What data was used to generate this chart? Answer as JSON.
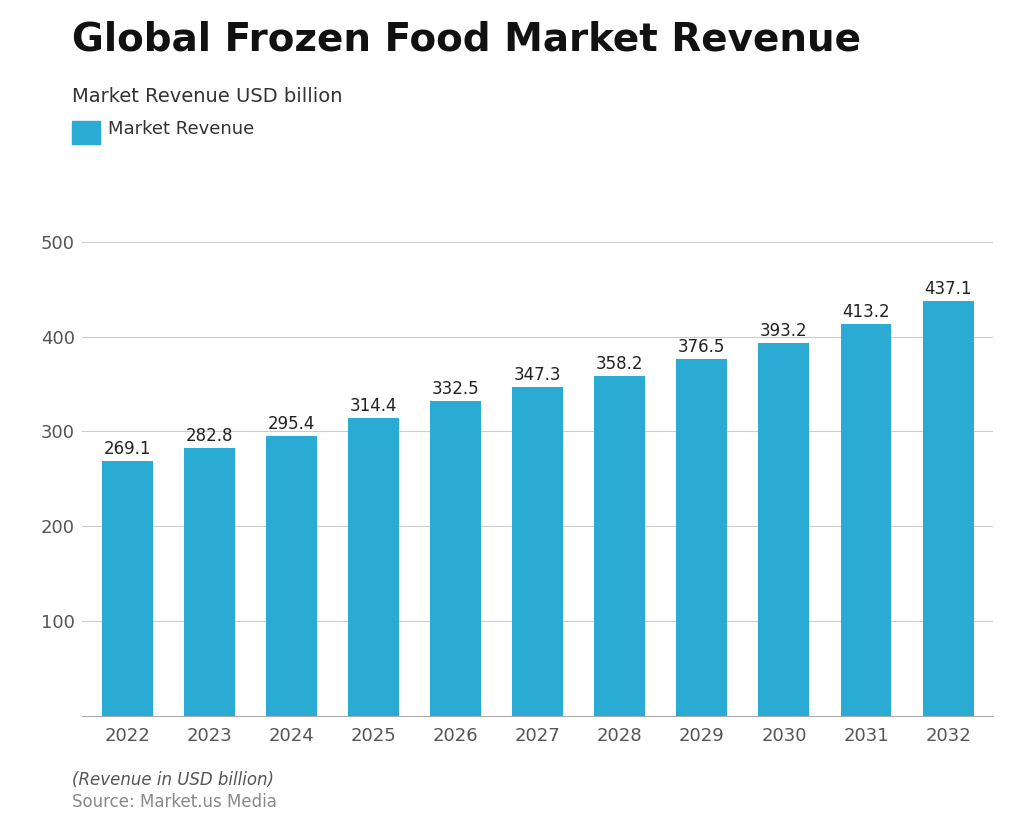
{
  "title": "Global Frozen Food Market Revenue",
  "subtitle": "Market Revenue USD billion",
  "legend_label": "Market Revenue",
  "bar_color": "#29ABD4",
  "years": [
    2022,
    2023,
    2024,
    2025,
    2026,
    2027,
    2028,
    2029,
    2030,
    2031,
    2032
  ],
  "values": [
    269.1,
    282.8,
    295.4,
    314.4,
    332.5,
    347.3,
    358.2,
    376.5,
    393.2,
    413.2,
    437.1
  ],
  "ylim": [
    0,
    500
  ],
  "yticks": [
    100,
    200,
    300,
    400,
    500
  ],
  "footer_italic": "(Revenue in USD billion)",
  "footer_source": "Source: Market.us Media",
  "background_color": "#ffffff",
  "title_fontsize": 28,
  "subtitle_fontsize": 14,
  "legend_fontsize": 13,
  "tick_fontsize": 13,
  "label_fontsize": 12,
  "footer_fontsize": 12
}
